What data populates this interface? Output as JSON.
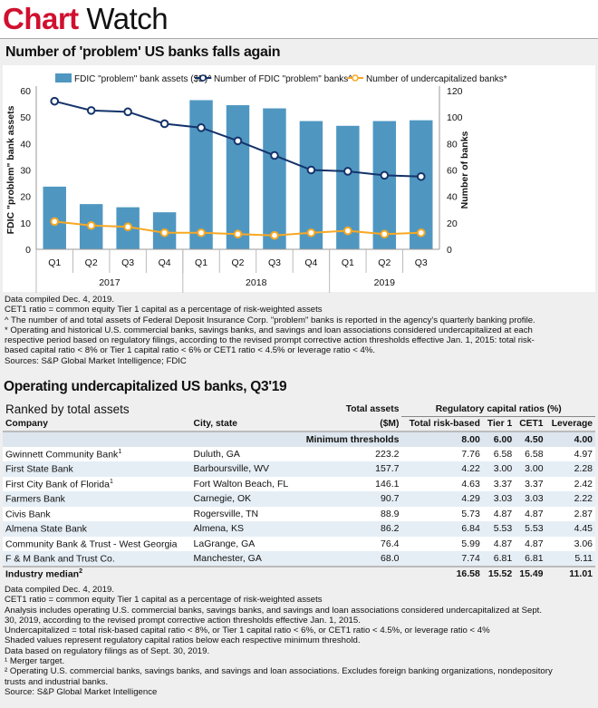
{
  "brand": {
    "part1": "Chart",
    "part2": "Watch"
  },
  "chart_title": "Number of 'problem' US banks falls again",
  "chart_data": {
    "type": "bar+line",
    "categories": [
      "Q1",
      "Q2",
      "Q3",
      "Q4",
      "Q1",
      "Q2",
      "Q3",
      "Q4",
      "Q1",
      "Q2",
      "Q3"
    ],
    "groups": [
      {
        "label": "2017",
        "span": 4
      },
      {
        "label": "2018",
        "span": 4
      },
      {
        "label": "2019",
        "span": 3
      }
    ],
    "series": [
      {
        "name": "FDIC \"problem\" bank assets ($B)^",
        "type": "bar",
        "axis": "left",
        "color": "#4f97c1",
        "values": [
          23.7,
          17.1,
          15.9,
          14.0,
          56.4,
          54.5,
          53.3,
          48.5,
          46.7,
          48.5,
          48.8
        ]
      },
      {
        "name": "Number of FDIC \"problem\" banks^",
        "type": "line",
        "axis": "right",
        "color": "#14336b",
        "values": [
          112,
          105,
          104,
          95,
          92,
          82,
          71,
          60,
          59,
          56,
          55
        ]
      },
      {
        "name": "Number of undercapitalized banks*",
        "type": "line",
        "axis": "right",
        "color": "#f7a823",
        "values": [
          21,
          18,
          17,
          12.5,
          12.5,
          11.5,
          10.5,
          12.5,
          14,
          11.5,
          12.5
        ]
      }
    ],
    "ylabel": "FDIC \"problem\" bank assets",
    "y2label": "Number of banks",
    "ylim": [
      0,
      60
    ],
    "y2lim": [
      0,
      120
    ],
    "yticks": [
      0,
      10,
      20,
      30,
      40,
      50,
      60
    ],
    "y2ticks": [
      0,
      20,
      40,
      60,
      80,
      100,
      120
    ],
    "legend": "top",
    "grid": false
  },
  "notes1": [
    "Data compiled Dec. 4, 2019.",
    "CET1 ratio = common equity Tier 1 capital as a percentage of risk-weighted assets",
    "^ The number of and total assets of Federal Deposit Insurance Corp. \"problem\" banks is reported in the agency's quarterly banking profile.",
    "* Operating and historical U.S. commercial banks, savings banks, and savings and loan associations considered undercapitalized at each",
    "respective period based on regulatory filings, according to the revised prompt corrective action thresholds effective Jan. 1, 2015: total risk-",
    "based capital ratio < 8% or Tier 1 capital ratio < 6% or CET1 ratio < 4.5% or leverage ratio < 4%.",
    "Sources: S&P Global Market Intelligence; FDIC"
  ],
  "table": {
    "title": "Operating undercapitalized US banks, Q3'19",
    "subtitle": "Ranked by total assets",
    "group_header": "Regulatory capital ratios (%)",
    "headers": {
      "company": "Company",
      "city": "City, state",
      "assets1": "Total assets",
      "assets2": "($M)",
      "trb": "Total risk-based",
      "t1": "Tier 1",
      "cet1": "CET1",
      "lev": "Leverage"
    },
    "min": {
      "label": "Minimum thresholds",
      "trb": "8.00",
      "t1": "6.00",
      "cet1": "4.50",
      "lev": "4.00"
    },
    "rows": [
      {
        "company": "Gwinnett Community Bank",
        "sup": "1",
        "city": "Duluth, GA",
        "assets": "223.2",
        "trb": "7.76",
        "t1": "6.58",
        "cet1": "6.58",
        "lev": "4.97"
      },
      {
        "company": "First State Bank",
        "sup": "",
        "city": "Barboursville, WV",
        "assets": "157.7",
        "trb": "4.22",
        "t1": "3.00",
        "cet1": "3.00",
        "lev": "2.28"
      },
      {
        "company": "First City Bank of Florida",
        "sup": "1",
        "city": "Fort Walton Beach, FL",
        "assets": "146.1",
        "trb": "4.63",
        "t1": "3.37",
        "cet1": "3.37",
        "lev": "2.42"
      },
      {
        "company": "Farmers Bank",
        "sup": "",
        "city": "Carnegie, OK",
        "assets": "90.7",
        "trb": "4.29",
        "t1": "3.03",
        "cet1": "3.03",
        "lev": "2.22"
      },
      {
        "company": "Civis Bank",
        "sup": "",
        "city": "Rogersville, TN",
        "assets": "88.9",
        "trb": "5.73",
        "t1": "4.87",
        "cet1": "4.87",
        "lev": "2.87"
      },
      {
        "company": "Almena State Bank",
        "sup": "",
        "city": "Almena, KS",
        "assets": "86.2",
        "trb": "6.84",
        "t1": "5.53",
        "cet1": "5.53",
        "lev": "4.45"
      },
      {
        "company": "Community Bank & Trust - West Georgia",
        "sup": "",
        "city": "LaGrange, GA",
        "assets": "76.4",
        "trb": "5.99",
        "t1": "4.87",
        "cet1": "4.87",
        "lev": "3.06"
      },
      {
        "company": "F & M Bank and Trust Co.",
        "sup": "",
        "city": "Manchester, GA",
        "assets": "68.0",
        "trb": "7.74",
        "t1": "6.81",
        "cet1": "6.81",
        "lev": "5.11"
      }
    ],
    "median": {
      "label": "Industry median",
      "sup": "2",
      "trb": "16.58",
      "t1": "15.52",
      "cet1": "15.49",
      "lev": "11.01"
    }
  },
  "notes2": [
    "Data compiled Dec. 4, 2019.",
    "CET1 ratio = common equity Tier 1 capital as a percentage of risk-weighted assets",
    "Analysis includes operating U.S. commercial banks, savings banks, and savings and loan associations considered undercapitalized at Sept.",
    "30, 2019, according to the revised prompt corrective action thresholds effective Jan. 1, 2015.",
    "Undercapitalized = total risk-based capital ratio < 8%, or Tier 1 capital ratio < 6%, or CET1 ratio < 4.5%, or leverage ratio < 4%",
    "Shaded values represent regulatory capital ratios below each respective minimum threshold.",
    "Data based on regulatory filings as of Sept. 30, 2019.",
    "¹ Merger target.",
    "² Operating U.S. commercial banks, savings banks, and savings and loan associations. Excludes foreign banking organizations, nondepository",
    "trusts and industrial banks.",
    "Source: S&P Global Market Intelligence"
  ]
}
